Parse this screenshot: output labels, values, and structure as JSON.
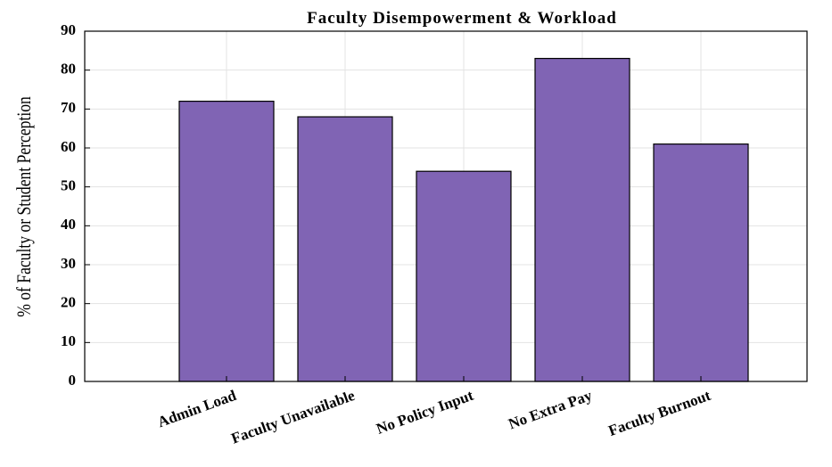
{
  "chart_data": {
    "type": "bar",
    "title": "Faculty Disempowerment & Workload",
    "ylabel": "% of Faculty or Student Perception",
    "categories": [
      "Admin Load",
      "Faculty Unavailable",
      "No Policy Input",
      "No Extra Pay",
      "Faculty Burnout"
    ],
    "values": [
      72,
      68,
      54,
      83,
      61
    ],
    "color": "#8064b4",
    "ylim": [
      0,
      90
    ],
    "yticks": [
      0,
      10,
      20,
      30,
      40,
      50,
      60,
      70,
      80,
      90
    ],
    "grid": true
  }
}
